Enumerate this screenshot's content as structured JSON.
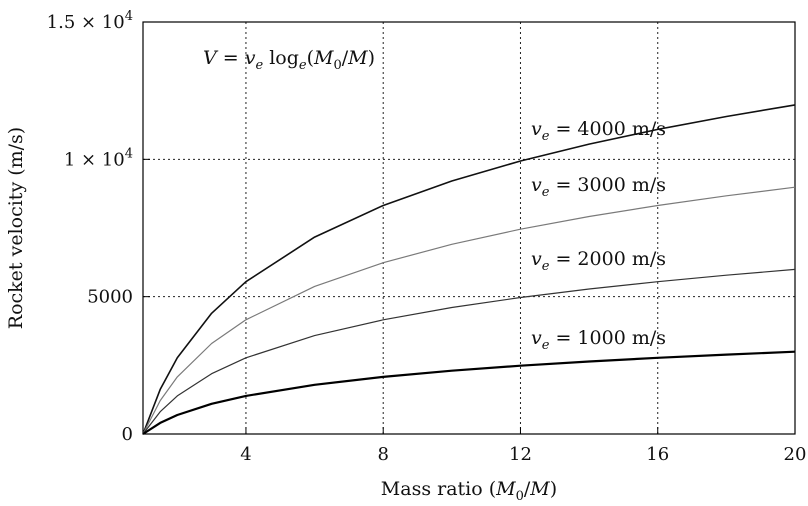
{
  "chart_data": {
    "type": "line",
    "title": "",
    "xlabel": "Mass ratio (M0/M)",
    "ylabel": "Rocket velocity (m/s)",
    "xlim": [
      1,
      20
    ],
    "ylim": [
      0,
      15000
    ],
    "x_ticks": [
      4,
      8,
      12,
      16,
      20
    ],
    "y_ticks": [
      {
        "value": 0,
        "label": "0"
      },
      {
        "value": 5000,
        "label": "5000"
      },
      {
        "value": 10000,
        "label": "1 × 10^4"
      },
      {
        "value": 15000,
        "label": "1.5 × 10^4"
      }
    ],
    "grid": "dotted at x = 4, 8, 12, 16 and y = 5000, 10000",
    "formula": "V = ve loge(M0/M)",
    "x": [
      1,
      1.5,
      2,
      3,
      4,
      6,
      8,
      10,
      12,
      14,
      16,
      18,
      20
    ],
    "series": [
      {
        "name": "ve = 4000 m/s",
        "color": "#111111",
        "width": 1.6,
        "values": [
          0,
          1622,
          2773,
          4394,
          5545,
          7167,
          8318,
          9210,
          9940,
          10556,
          11090,
          11561,
          11983
        ]
      },
      {
        "name": "ve = 3000 m/s",
        "color": "#7a7a7a",
        "width": 1.2,
        "values": [
          0,
          1216,
          2079,
          3296,
          4159,
          5375,
          6238,
          6908,
          7455,
          7917,
          8318,
          8671,
          8987
        ]
      },
      {
        "name": "ve = 2000 m/s",
        "color": "#333333",
        "width": 1.2,
        "values": [
          0,
          811,
          1386,
          2197,
          2773,
          3584,
          4159,
          4605,
          4970,
          5278,
          5545,
          5781,
          5991
        ]
      },
      {
        "name": "ve = 1000 m/s",
        "color": "#000000",
        "width": 2.2,
        "values": [
          0,
          405,
          693,
          1099,
          1386,
          1792,
          2079,
          2303,
          2485,
          2639,
          2773,
          2890,
          2996
        ]
      }
    ]
  }
}
